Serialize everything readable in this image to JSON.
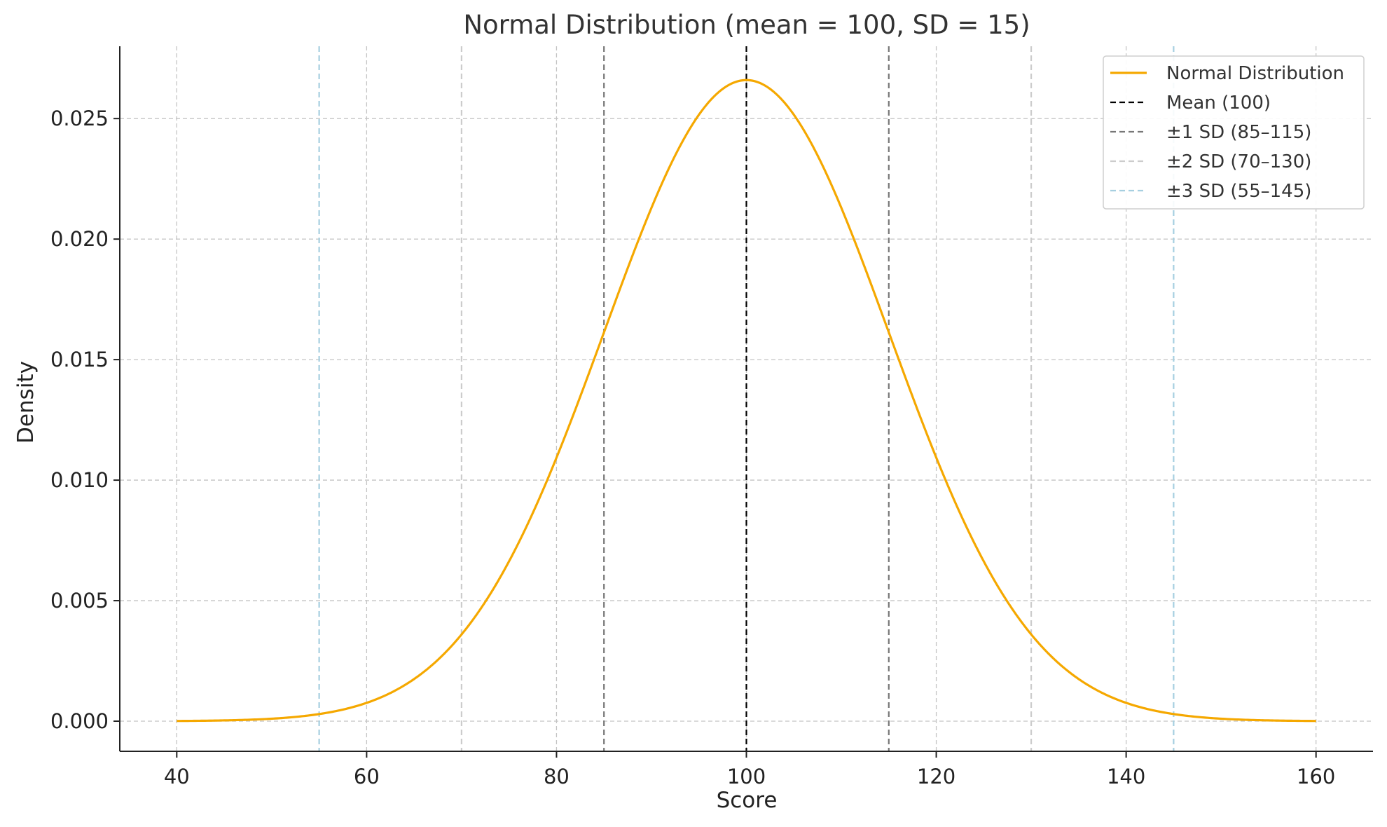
{
  "chart_data": {
    "type": "line",
    "title": "Normal Distribution (mean = 100, SD = 15)",
    "xlabel": "Score",
    "ylabel": "Density",
    "mean": 100,
    "sd": 15,
    "xlim": [
      34,
      166
    ],
    "ylim": [
      -0.00125,
      0.028
    ],
    "x_ticks": [
      40,
      60,
      80,
      100,
      120,
      140,
      160
    ],
    "x_tick_labels": [
      "40",
      "60",
      "80",
      "100",
      "120",
      "140",
      "160"
    ],
    "y_ticks": [
      0.0,
      0.005,
      0.01,
      0.015,
      0.02,
      0.025
    ],
    "y_tick_labels": [
      "0.000",
      "0.005",
      "0.010",
      "0.015",
      "0.020",
      "0.025"
    ],
    "grid": true,
    "legend_position": "top-right",
    "series": [
      {
        "name": "Normal Distribution",
        "color": "#f5a800",
        "x": [
          40,
          45,
          50,
          55,
          60,
          65,
          70,
          75,
          80,
          85,
          90,
          95,
          100,
          105,
          110,
          115,
          120,
          125,
          130,
          135,
          140,
          145,
          150,
          155,
          160
        ],
        "y": [
          8.9e-06,
          4.3e-05,
          0.00017,
          0.0006,
          0.00182,
          0.00433,
          0.0036,
          0.00668,
          0.01093,
          0.01613,
          0.0213,
          0.02516,
          0.0266,
          0.02516,
          0.0213,
          0.01613,
          0.01093,
          0.00668,
          0.0036,
          0.00175,
          0.00076,
          0.0003,
          0.0001,
          3e-05,
          8.9e-06
        ]
      }
    ],
    "reference_lines": [
      {
        "name": "Mean (100)",
        "x": [
          100
        ],
        "color": "#000000"
      },
      {
        "name": "±1 SD (85–115)",
        "x": [
          85,
          115
        ],
        "color": "#777777"
      },
      {
        "name": "±2 SD (70–130)",
        "x": [
          70,
          130
        ],
        "color": "#cccccc"
      },
      {
        "name": "±3 SD (55–145)",
        "x": [
          55,
          145
        ],
        "color": "#a6cfe0"
      }
    ]
  }
}
